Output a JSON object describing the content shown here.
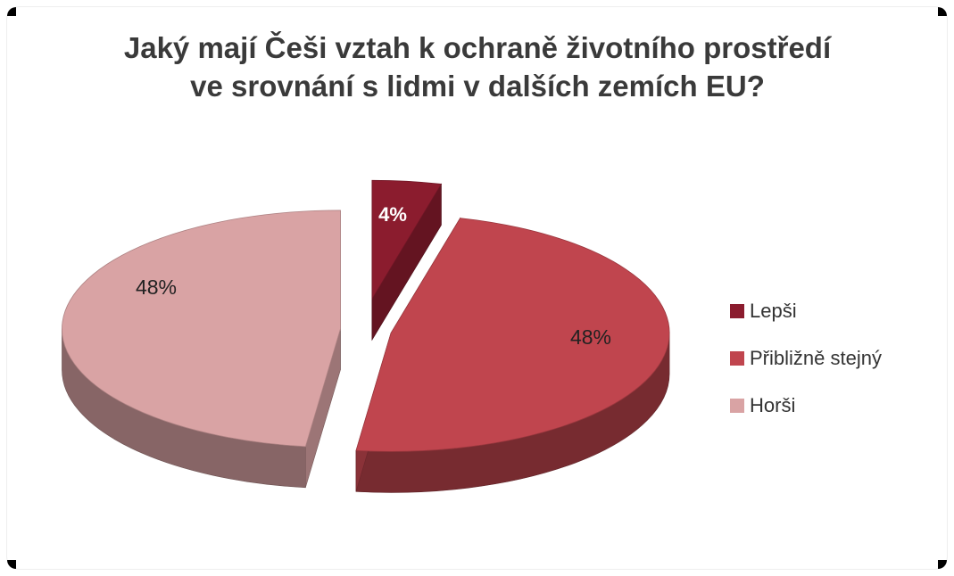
{
  "chart_data": {
    "type": "pie",
    "title": "Jaký mají Češi vztah k ochraně životního prostředí ve srovnání s lidmi v dalších zemích EU?",
    "categories": [
      "Lepši",
      "Přibližně stejný",
      "Horši"
    ],
    "values": [
      4,
      48,
      48
    ],
    "data_labels": [
      "4%",
      "48%",
      "48%"
    ],
    "colors": [
      "#8b1c2e",
      "#c0454e",
      "#d9a3a4"
    ],
    "legend_position": "right",
    "style": "3d-exploded"
  }
}
